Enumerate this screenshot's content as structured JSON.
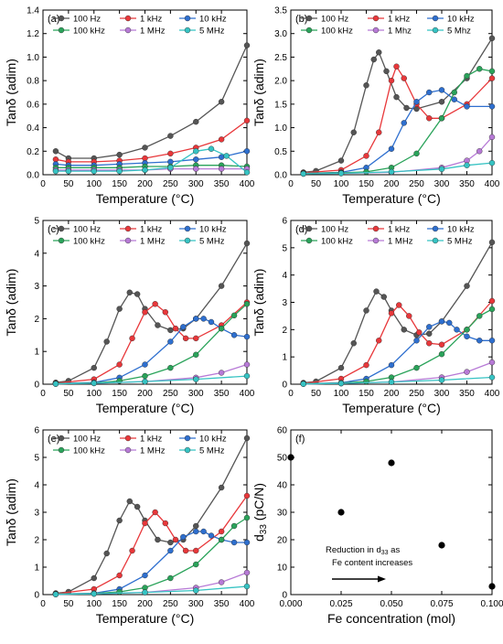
{
  "chart_data": [
    {
      "panel": "(a)",
      "type": "line",
      "xlabel": "Temperature (°C)",
      "ylabel": "Tanδ (adim)",
      "xlim": [
        0,
        400
      ],
      "ylim": [
        0.0,
        1.4
      ],
      "xticks": [
        0,
        50,
        100,
        150,
        200,
        250,
        300,
        350,
        400
      ],
      "yticks": [
        0.0,
        0.2,
        0.4,
        0.6,
        0.8,
        1.0,
        1.2,
        1.4
      ],
      "legend_position": "top",
      "series": [
        {
          "name": "100 Hz",
          "color": "#555555",
          "x": [
            25,
            50,
            100,
            150,
            200,
            250,
            300,
            350,
            400
          ],
          "y": [
            0.2,
            0.14,
            0.14,
            0.17,
            0.23,
            0.33,
            0.45,
            0.62,
            1.1
          ]
        },
        {
          "name": "1 kHz",
          "color": "#e8373a",
          "x": [
            25,
            50,
            100,
            150,
            200,
            250,
            300,
            350,
            400
          ],
          "y": [
            0.13,
            0.11,
            0.11,
            0.12,
            0.14,
            0.18,
            0.23,
            0.3,
            0.46
          ]
        },
        {
          "name": "10 kHz",
          "color": "#2e6fcf",
          "x": [
            25,
            50,
            100,
            150,
            200,
            250,
            300,
            350,
            400
          ],
          "y": [
            0.09,
            0.08,
            0.08,
            0.09,
            0.1,
            0.11,
            0.13,
            0.15,
            0.2
          ]
        },
        {
          "name": "100 kHz",
          "color": "#2aa35a",
          "x": [
            25,
            50,
            100,
            150,
            200,
            250,
            300,
            350,
            400
          ],
          "y": [
            0.06,
            0.06,
            0.06,
            0.06,
            0.07,
            0.07,
            0.08,
            0.08,
            0.07
          ]
        },
        {
          "name": "1 MHz",
          "color": "#b77ad6",
          "x": [
            25,
            50,
            100,
            150,
            200,
            250,
            300,
            350,
            400
          ],
          "y": [
            0.04,
            0.04,
            0.04,
            0.04,
            0.04,
            0.05,
            0.05,
            0.05,
            0.05
          ]
        },
        {
          "name": "5 MHz",
          "color": "#36c3c3",
          "x": [
            25,
            50,
            100,
            150,
            200,
            250,
            300,
            330,
            360,
            400
          ],
          "y": [
            0.03,
            0.03,
            0.03,
            0.03,
            0.04,
            0.06,
            0.2,
            0.22,
            0.16,
            0.02
          ]
        }
      ]
    },
    {
      "panel": "(b)",
      "type": "line",
      "xlabel": "Temperature (°C)",
      "ylabel": "Tanδ (adim)",
      "xlim": [
        0,
        400
      ],
      "ylim": [
        0.0,
        3.5
      ],
      "xticks": [
        0,
        50,
        100,
        150,
        200,
        250,
        300,
        350,
        400
      ],
      "yticks": [
        0.0,
        0.5,
        1.0,
        1.5,
        2.0,
        2.5,
        3.0,
        3.5
      ],
      "legend_position": "top",
      "series": [
        {
          "name": "100 Hz",
          "color": "#555555",
          "x": [
            25,
            50,
            100,
            125,
            150,
            165,
            175,
            190,
            210,
            230,
            250,
            300,
            350,
            400
          ],
          "y": [
            0.05,
            0.08,
            0.3,
            0.9,
            1.9,
            2.45,
            2.6,
            2.2,
            1.65,
            1.42,
            1.4,
            1.55,
            2.05,
            2.9
          ]
        },
        {
          "name": "1 kHz",
          "color": "#e8373a",
          "x": [
            25,
            100,
            150,
            175,
            200,
            210,
            225,
            250,
            275,
            300,
            350,
            400
          ],
          "y": [
            0.04,
            0.1,
            0.4,
            0.9,
            2.0,
            2.3,
            2.05,
            1.5,
            1.2,
            1.2,
            1.5,
            2.05
          ]
        },
        {
          "name": "10 kHz",
          "color": "#2e6fcf",
          "x": [
            25,
            100,
            150,
            200,
            225,
            250,
            275,
            300,
            325,
            350,
            400
          ],
          "y": [
            0.03,
            0.05,
            0.15,
            0.55,
            1.1,
            1.55,
            1.75,
            1.8,
            1.6,
            1.45,
            1.45
          ]
        },
        {
          "name": "100 kHz",
          "color": "#2aa35a",
          "x": [
            25,
            100,
            150,
            200,
            250,
            300,
            325,
            350,
            375,
            400
          ],
          "y": [
            0.03,
            0.04,
            0.06,
            0.15,
            0.45,
            1.2,
            1.75,
            2.1,
            2.25,
            2.2
          ]
        },
        {
          "name": "1 Mhz",
          "color": "#b77ad6",
          "x": [
            25,
            100,
            200,
            300,
            350,
            375,
            400
          ],
          "y": [
            0.02,
            0.03,
            0.05,
            0.15,
            0.3,
            0.5,
            0.8
          ]
        },
        {
          "name": "5 Mhz",
          "color": "#36c3c3",
          "x": [
            25,
            100,
            200,
            300,
            350,
            400
          ],
          "y": [
            0.02,
            0.03,
            0.06,
            0.12,
            0.2,
            0.25
          ]
        }
      ]
    },
    {
      "panel": "(c)",
      "type": "line",
      "xlabel": "Temperature (°C)",
      "ylabel": "Tanδ (adim)",
      "xlim": [
        0,
        400
      ],
      "ylim": [
        0,
        5
      ],
      "xticks": [
        0,
        50,
        100,
        150,
        200,
        250,
        300,
        350,
        400
      ],
      "yticks": [
        0,
        1,
        2,
        3,
        4,
        5
      ],
      "legend_position": "top",
      "series": [
        {
          "name": "100 Hz",
          "color": "#555555",
          "x": [
            25,
            50,
            100,
            125,
            150,
            170,
            185,
            200,
            225,
            250,
            275,
            300,
            350,
            400
          ],
          "y": [
            0.05,
            0.1,
            0.5,
            1.3,
            2.3,
            2.8,
            2.75,
            2.3,
            1.8,
            1.65,
            1.7,
            2.0,
            3.0,
            4.3
          ]
        },
        {
          "name": "1 kHz",
          "color": "#e8373a",
          "x": [
            25,
            100,
            150,
            175,
            200,
            220,
            240,
            260,
            280,
            300,
            350,
            400
          ],
          "y": [
            0.03,
            0.15,
            0.6,
            1.4,
            2.2,
            2.45,
            2.2,
            1.7,
            1.4,
            1.4,
            1.8,
            2.5
          ]
        },
        {
          "name": "10 kHz",
          "color": "#2e6fcf",
          "x": [
            25,
            100,
            150,
            200,
            250,
            275,
            300,
            315,
            330,
            350,
            375,
            400
          ],
          "y": [
            0.02,
            0.05,
            0.2,
            0.6,
            1.3,
            1.75,
            2.0,
            2.0,
            1.9,
            1.7,
            1.5,
            1.45
          ]
        },
        {
          "name": "100 kHz",
          "color": "#2aa35a",
          "x": [
            25,
            100,
            150,
            200,
            250,
            300,
            350,
            375,
            400
          ],
          "y": [
            0.02,
            0.04,
            0.1,
            0.25,
            0.5,
            0.9,
            1.7,
            2.1,
            2.45
          ]
        },
        {
          "name": "1 MHz",
          "color": "#b77ad6",
          "x": [
            25,
            100,
            200,
            300,
            350,
            400
          ],
          "y": [
            0.01,
            0.03,
            0.08,
            0.2,
            0.35,
            0.6
          ]
        },
        {
          "name": "5 MHz",
          "color": "#36c3c3",
          "x": [
            25,
            100,
            200,
            300,
            400
          ],
          "y": [
            0.01,
            0.03,
            0.08,
            0.15,
            0.25
          ]
        }
      ]
    },
    {
      "panel": "(d)",
      "type": "line",
      "xlabel": "Temperature (°C)",
      "ylabel": "Tanδ (adim)",
      "xlim": [
        0,
        400
      ],
      "ylim": [
        0,
        6
      ],
      "xticks": [
        0,
        50,
        100,
        150,
        200,
        250,
        300,
        350,
        400
      ],
      "yticks": [
        0,
        1,
        2,
        3,
        4,
        5,
        6
      ],
      "legend_position": "top",
      "series": [
        {
          "name": "100 Hz",
          "color": "#555555",
          "x": [
            25,
            50,
            100,
            125,
            150,
            170,
            185,
            200,
            225,
            250,
            275,
            300,
            350,
            400
          ],
          "y": [
            0.05,
            0.1,
            0.6,
            1.5,
            2.7,
            3.4,
            3.2,
            2.7,
            2.0,
            1.8,
            1.85,
            2.3,
            3.6,
            5.2
          ]
        },
        {
          "name": "1 kHz",
          "color": "#e8373a",
          "x": [
            25,
            100,
            150,
            175,
            200,
            215,
            235,
            255,
            275,
            300,
            350,
            400
          ],
          "y": [
            0.03,
            0.2,
            0.7,
            1.6,
            2.6,
            2.9,
            2.5,
            1.9,
            1.5,
            1.45,
            2.0,
            3.05
          ]
        },
        {
          "name": "10 kHz",
          "color": "#2e6fcf",
          "x": [
            25,
            100,
            150,
            200,
            250,
            275,
            300,
            315,
            330,
            350,
            375,
            400
          ],
          "y": [
            0.02,
            0.05,
            0.2,
            0.7,
            1.6,
            2.1,
            2.3,
            2.25,
            2.0,
            1.75,
            1.6,
            1.6
          ]
        },
        {
          "name": "100 kHz",
          "color": "#2aa35a",
          "x": [
            25,
            100,
            150,
            200,
            250,
            300,
            350,
            375,
            400
          ],
          "y": [
            0.02,
            0.04,
            0.1,
            0.25,
            0.6,
            1.1,
            2.0,
            2.5,
            2.75
          ]
        },
        {
          "name": "1 MHz",
          "color": "#b77ad6",
          "x": [
            25,
            100,
            200,
            300,
            350,
            400
          ],
          "y": [
            0.01,
            0.03,
            0.08,
            0.25,
            0.45,
            0.8
          ]
        },
        {
          "name": "5 MHz",
          "color": "#36c3c3",
          "x": [
            25,
            100,
            200,
            300,
            400
          ],
          "y": [
            0.01,
            0.03,
            0.08,
            0.15,
            0.25
          ]
        }
      ]
    },
    {
      "panel": "(e)",
      "type": "line",
      "xlabel": "Temperature (°C)",
      "ylabel": "Tanδ (adim)",
      "xlim": [
        0,
        400
      ],
      "ylim": [
        0,
        6
      ],
      "xticks": [
        0,
        50,
        100,
        150,
        200,
        250,
        300,
        350,
        400
      ],
      "yticks": [
        0,
        1,
        2,
        3,
        4,
        5,
        6
      ],
      "legend_position": "top",
      "series": [
        {
          "name": "100 Hz",
          "color": "#555555",
          "x": [
            25,
            50,
            100,
            125,
            150,
            170,
            185,
            200,
            225,
            250,
            275,
            300,
            350,
            400
          ],
          "y": [
            0.05,
            0.1,
            0.6,
            1.5,
            2.7,
            3.4,
            3.2,
            2.7,
            2.0,
            1.9,
            2.0,
            2.5,
            3.9,
            5.7
          ]
        },
        {
          "name": "1 kHz",
          "color": "#e8373a",
          "x": [
            25,
            100,
            150,
            175,
            200,
            220,
            240,
            260,
            280,
            300,
            350,
            400
          ],
          "y": [
            0.03,
            0.2,
            0.7,
            1.6,
            2.6,
            3.0,
            2.6,
            2.0,
            1.6,
            1.6,
            2.3,
            3.6
          ]
        },
        {
          "name": "10 kHz",
          "color": "#2e6fcf",
          "x": [
            25,
            100,
            150,
            200,
            250,
            275,
            300,
            315,
            330,
            350,
            375,
            400
          ],
          "y": [
            0.02,
            0.05,
            0.2,
            0.7,
            1.6,
            2.1,
            2.3,
            2.3,
            2.15,
            2.0,
            1.9,
            1.9
          ]
        },
        {
          "name": "100 kHz",
          "color": "#2aa35a",
          "x": [
            25,
            100,
            150,
            200,
            250,
            300,
            350,
            375,
            400
          ],
          "y": [
            0.02,
            0.04,
            0.1,
            0.25,
            0.6,
            1.1,
            2.0,
            2.5,
            2.8
          ]
        },
        {
          "name": "1 MHz",
          "color": "#b77ad6",
          "x": [
            25,
            100,
            200,
            300,
            350,
            400
          ],
          "y": [
            0.01,
            0.03,
            0.08,
            0.25,
            0.45,
            0.8
          ]
        },
        {
          "name": "5 MHz",
          "color": "#36c3c3",
          "x": [
            25,
            100,
            200,
            300,
            400
          ],
          "y": [
            0.01,
            0.03,
            0.08,
            0.15,
            0.3
          ]
        }
      ]
    },
    {
      "panel": "(f)",
      "type": "scatter",
      "xlabel": "Fe concentration (mol)",
      "ylabel": "d33 (pC/N)",
      "xlim": [
        0.0,
        0.1
      ],
      "ylim": [
        0,
        60
      ],
      "xticks": [
        0.0,
        0.025,
        0.05,
        0.075,
        0.1
      ],
      "xtick_labels": [
        "0.000",
        "0.025",
        "0.050",
        "0.075",
        "0.100"
      ],
      "yticks": [
        0,
        10,
        20,
        30,
        40,
        50,
        60
      ],
      "annotation": [
        "Reduction in d33 as",
        "Fe content increases"
      ],
      "series": [
        {
          "name": "",
          "color": "#000000",
          "x": [
            0.0,
            0.025,
            0.05,
            0.075,
            0.1
          ],
          "y": [
            50,
            30,
            48,
            18,
            3
          ]
        }
      ]
    }
  ]
}
